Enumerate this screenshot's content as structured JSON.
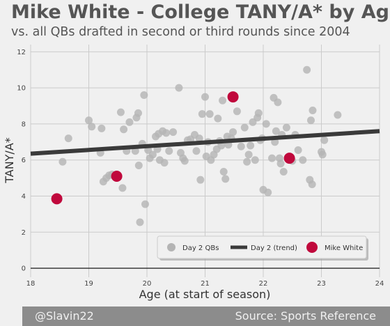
{
  "title": "Mike White - College TANY/A* by Age",
  "subtitle": "vs. all QBs drafted in second or third rounds since 2004",
  "footer": {
    "left": "@Slavin22",
    "right": "Source: Sports Reference"
  },
  "colors": {
    "day2": "#b4b4b4",
    "trend": "#3a3a3a",
    "mike": "#c0083c",
    "background": "#f0f0f0"
  },
  "chart_data": {
    "type": "scatter",
    "xlabel": "Age (at start of season)",
    "ylabel": "TANY/A*",
    "xlim": [
      18,
      24
    ],
    "ylim": [
      -0.5,
      12.4
    ],
    "xticks": [
      18,
      19,
      20,
      21,
      22,
      23,
      24
    ],
    "yticks": [
      0,
      2,
      4,
      6,
      8,
      10,
      12
    ],
    "grid": true,
    "legend_position": "bottom-right",
    "legend": [
      "Day 2 QBs",
      "Day 2 (trend)",
      "Mike White"
    ],
    "series": [
      {
        "name": "Day 2 QBs",
        "points": [
          [
            18.55,
            5.9
          ],
          [
            18.65,
            7.2
          ],
          [
            19.0,
            8.2
          ],
          [
            19.05,
            7.85
          ],
          [
            19.2,
            6.4
          ],
          [
            19.22,
            7.75
          ],
          [
            19.25,
            4.8
          ],
          [
            19.3,
            5.0
          ],
          [
            19.35,
            5.15
          ],
          [
            19.4,
            5.2
          ],
          [
            19.55,
            8.65
          ],
          [
            19.58,
            4.45
          ],
          [
            19.6,
            7.7
          ],
          [
            19.65,
            6.5
          ],
          [
            19.7,
            8.1
          ],
          [
            19.8,
            6.5
          ],
          [
            19.82,
            8.35
          ],
          [
            19.85,
            8.6
          ],
          [
            19.86,
            5.7
          ],
          [
            19.88,
            2.55
          ],
          [
            19.92,
            6.9
          ],
          [
            19.95,
            9.6
          ],
          [
            19.97,
            3.55
          ],
          [
            20.02,
            6.55
          ],
          [
            20.05,
            6.1
          ],
          [
            20.1,
            6.3
          ],
          [
            20.15,
            7.3
          ],
          [
            20.18,
            6.6
          ],
          [
            20.2,
            7.45
          ],
          [
            20.22,
            6.0
          ],
          [
            20.27,
            7.6
          ],
          [
            20.3,
            5.85
          ],
          [
            20.33,
            7.5
          ],
          [
            20.38,
            6.5
          ],
          [
            20.45,
            7.55
          ],
          [
            20.55,
            10.0
          ],
          [
            20.58,
            6.4
          ],
          [
            20.62,
            6.1
          ],
          [
            20.65,
            5.95
          ],
          [
            20.7,
            7.1
          ],
          [
            20.75,
            7.15
          ],
          [
            20.82,
            7.4
          ],
          [
            20.85,
            6.5
          ],
          [
            20.9,
            7.2
          ],
          [
            20.92,
            4.9
          ],
          [
            20.95,
            8.55
          ],
          [
            21.0,
            9.5
          ],
          [
            21.02,
            6.2
          ],
          [
            21.05,
            7.0
          ],
          [
            21.08,
            8.55
          ],
          [
            21.1,
            6.0
          ],
          [
            21.15,
            6.3
          ],
          [
            21.2,
            6.6
          ],
          [
            21.22,
            8.3
          ],
          [
            21.25,
            7.05
          ],
          [
            21.28,
            6.8
          ],
          [
            21.3,
            9.3
          ],
          [
            21.32,
            5.35
          ],
          [
            21.35,
            4.95
          ],
          [
            21.38,
            7.3
          ],
          [
            21.4,
            6.85
          ],
          [
            21.45,
            7.2
          ],
          [
            21.48,
            7.55
          ],
          [
            21.55,
            8.7
          ],
          [
            21.62,
            6.75
          ],
          [
            21.68,
            7.8
          ],
          [
            21.72,
            5.9
          ],
          [
            21.75,
            6.3
          ],
          [
            21.78,
            6.8
          ],
          [
            21.82,
            8.1
          ],
          [
            21.86,
            6.0
          ],
          [
            21.9,
            8.35
          ],
          [
            21.92,
            8.6
          ],
          [
            21.95,
            7.1
          ],
          [
            21.98,
            7.2
          ],
          [
            22.0,
            4.35
          ],
          [
            22.05,
            8.0
          ],
          [
            22.08,
            4.2
          ],
          [
            22.15,
            6.1
          ],
          [
            22.18,
            9.45
          ],
          [
            22.2,
            7.0
          ],
          [
            22.22,
            7.6
          ],
          [
            22.25,
            9.2
          ],
          [
            22.28,
            6.1
          ],
          [
            22.3,
            5.8
          ],
          [
            22.32,
            7.4
          ],
          [
            22.35,
            5.35
          ],
          [
            22.4,
            7.8
          ],
          [
            22.5,
            5.95
          ],
          [
            22.55,
            7.4
          ],
          [
            22.6,
            6.55
          ],
          [
            22.68,
            6.0
          ],
          [
            22.75,
            11.0
          ],
          [
            22.8,
            4.9
          ],
          [
            22.82,
            8.2
          ],
          [
            22.85,
            8.75
          ],
          [
            22.84,
            4.65
          ],
          [
            23.0,
            6.45
          ],
          [
            23.02,
            6.3
          ],
          [
            23.05,
            7.1
          ],
          [
            23.28,
            8.5
          ]
        ]
      },
      {
        "name": "Day 2 (trend)",
        "line": [
          [
            18,
            6.35
          ],
          [
            24,
            7.6
          ]
        ]
      },
      {
        "name": "Mike White",
        "points": [
          [
            18.45,
            3.85
          ],
          [
            19.48,
            5.1
          ],
          [
            21.48,
            9.5
          ],
          [
            22.45,
            6.1
          ]
        ]
      }
    ]
  }
}
